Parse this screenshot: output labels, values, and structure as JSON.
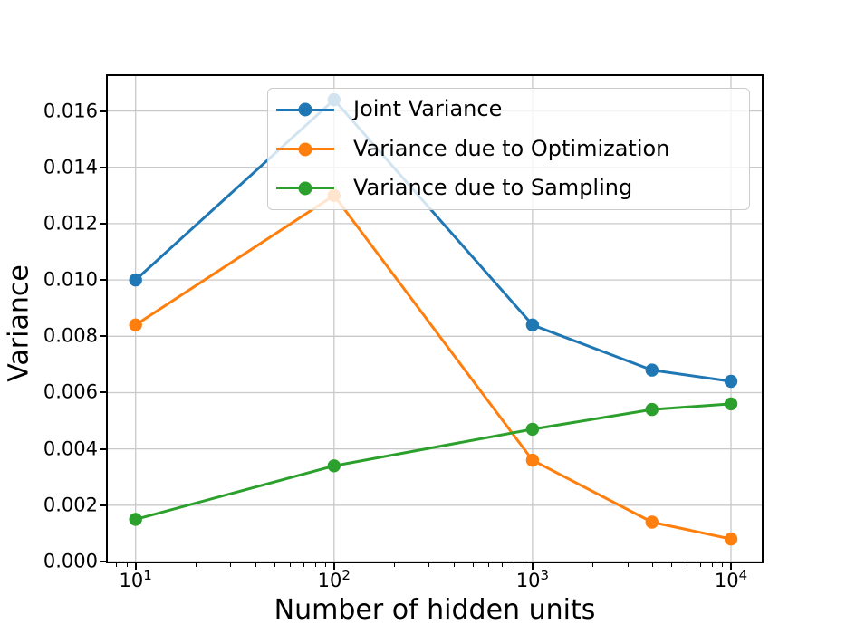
{
  "chart_data": {
    "type": "line",
    "xscale": "log",
    "x": [
      10,
      100,
      1000,
      4000,
      10000
    ],
    "series": [
      {
        "name": "Joint Variance",
        "color": "#1f77b4",
        "values": [
          0.01,
          0.0164,
          0.0084,
          0.0068,
          0.0064
        ]
      },
      {
        "name": "Variance due to Optimization",
        "color": "#ff7f0e",
        "values": [
          0.0084,
          0.013,
          0.0036,
          0.0014,
          0.0008
        ]
      },
      {
        "name": "Variance due to Sampling",
        "color": "#2ca02c",
        "values": [
          0.0015,
          0.0034,
          0.0047,
          0.0054,
          0.0056
        ]
      }
    ],
    "title": "",
    "xlabel": "Number of hidden units",
    "ylabel": "Variance",
    "xlim_log10": [
      0.86,
      4.155
    ],
    "ylim": [
      0,
      0.01724
    ],
    "yticks": [
      {
        "value": 0.0,
        "label": "0.000"
      },
      {
        "value": 0.002,
        "label": "0.002"
      },
      {
        "value": 0.004,
        "label": "0.004"
      },
      {
        "value": 0.006,
        "label": "0.006"
      },
      {
        "value": 0.008,
        "label": "0.008"
      },
      {
        "value": 0.01,
        "label": "0.010"
      },
      {
        "value": 0.012,
        "label": "0.012"
      },
      {
        "value": 0.014,
        "label": "0.014"
      },
      {
        "value": 0.016,
        "label": "0.016"
      }
    ],
    "xticks": [
      {
        "exp": 1,
        "base": "10",
        "sup": "1"
      },
      {
        "exp": 2,
        "base": "10",
        "sup": "2"
      },
      {
        "exp": 3,
        "base": "10",
        "sup": "3"
      },
      {
        "exp": 4,
        "base": "10",
        "sup": "4"
      }
    ],
    "grid": true,
    "grid_color": "#c9c9c9",
    "legend_position": "upper center"
  }
}
